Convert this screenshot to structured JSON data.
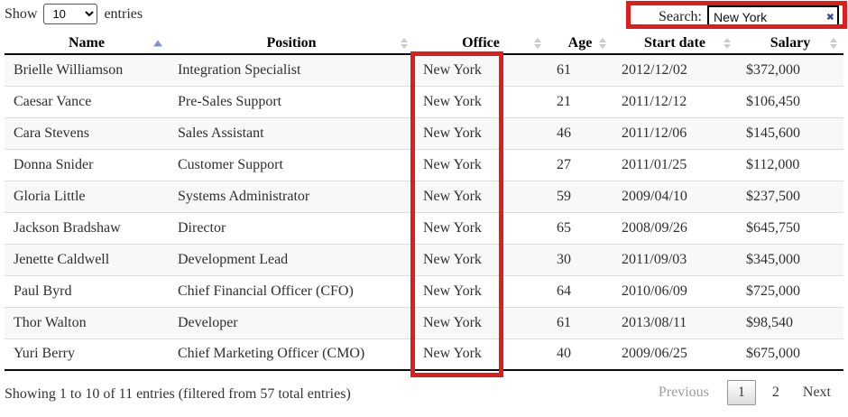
{
  "controls": {
    "show_label": "Show",
    "page_size": "10",
    "entries_label": "entries",
    "search_label": "Search:",
    "search_value": "New York",
    "clear_icon": "✖"
  },
  "table": {
    "columns": [
      {
        "label": "Name",
        "sort": "asc"
      },
      {
        "label": "Position",
        "sort": "none"
      },
      {
        "label": "Office",
        "sort": "none"
      },
      {
        "label": "Age",
        "sort": "none"
      },
      {
        "label": "Start date",
        "sort": "none"
      },
      {
        "label": "Salary",
        "sort": "none"
      }
    ],
    "rows": [
      [
        "Brielle Williamson",
        "Integration Specialist",
        "New York",
        "61",
        "2012/12/02",
        "$372,000"
      ],
      [
        "Caesar Vance",
        "Pre-Sales Support",
        "New York",
        "21",
        "2011/12/12",
        "$106,450"
      ],
      [
        "Cara Stevens",
        "Sales Assistant",
        "New York",
        "46",
        "2011/12/06",
        "$145,600"
      ],
      [
        "Donna Snider",
        "Customer Support",
        "New York",
        "27",
        "2011/01/25",
        "$112,000"
      ],
      [
        "Gloria Little",
        "Systems Administrator",
        "New York",
        "59",
        "2009/04/10",
        "$237,500"
      ],
      [
        "Jackson Bradshaw",
        "Director",
        "New York",
        "65",
        "2008/09/26",
        "$645,750"
      ],
      [
        "Jenette Caldwell",
        "Development Lead",
        "New York",
        "30",
        "2011/09/03",
        "$345,000"
      ],
      [
        "Paul Byrd",
        "Chief Financial Officer (CFO)",
        "New York",
        "64",
        "2010/06/09",
        "$725,000"
      ],
      [
        "Thor Walton",
        "Developer",
        "New York",
        "61",
        "2013/08/11",
        "$98,540"
      ],
      [
        "Yuri Berry",
        "Chief Marketing Officer (CMO)",
        "New York",
        "40",
        "2009/06/25",
        "$675,000"
      ]
    ]
  },
  "footer": {
    "info": "Showing 1 to 10 of 11 entries (filtered from 57 total entries)",
    "previous_label": "Previous",
    "pages": [
      "1",
      "2"
    ],
    "current_page": "1",
    "next_label": "Next"
  },
  "colors": {
    "annotation_red": "#e01d1d",
    "sort_active": "#8191d0",
    "sort_inactive": "#cacaca",
    "clear_icon_blue": "#2b4fa0"
  }
}
